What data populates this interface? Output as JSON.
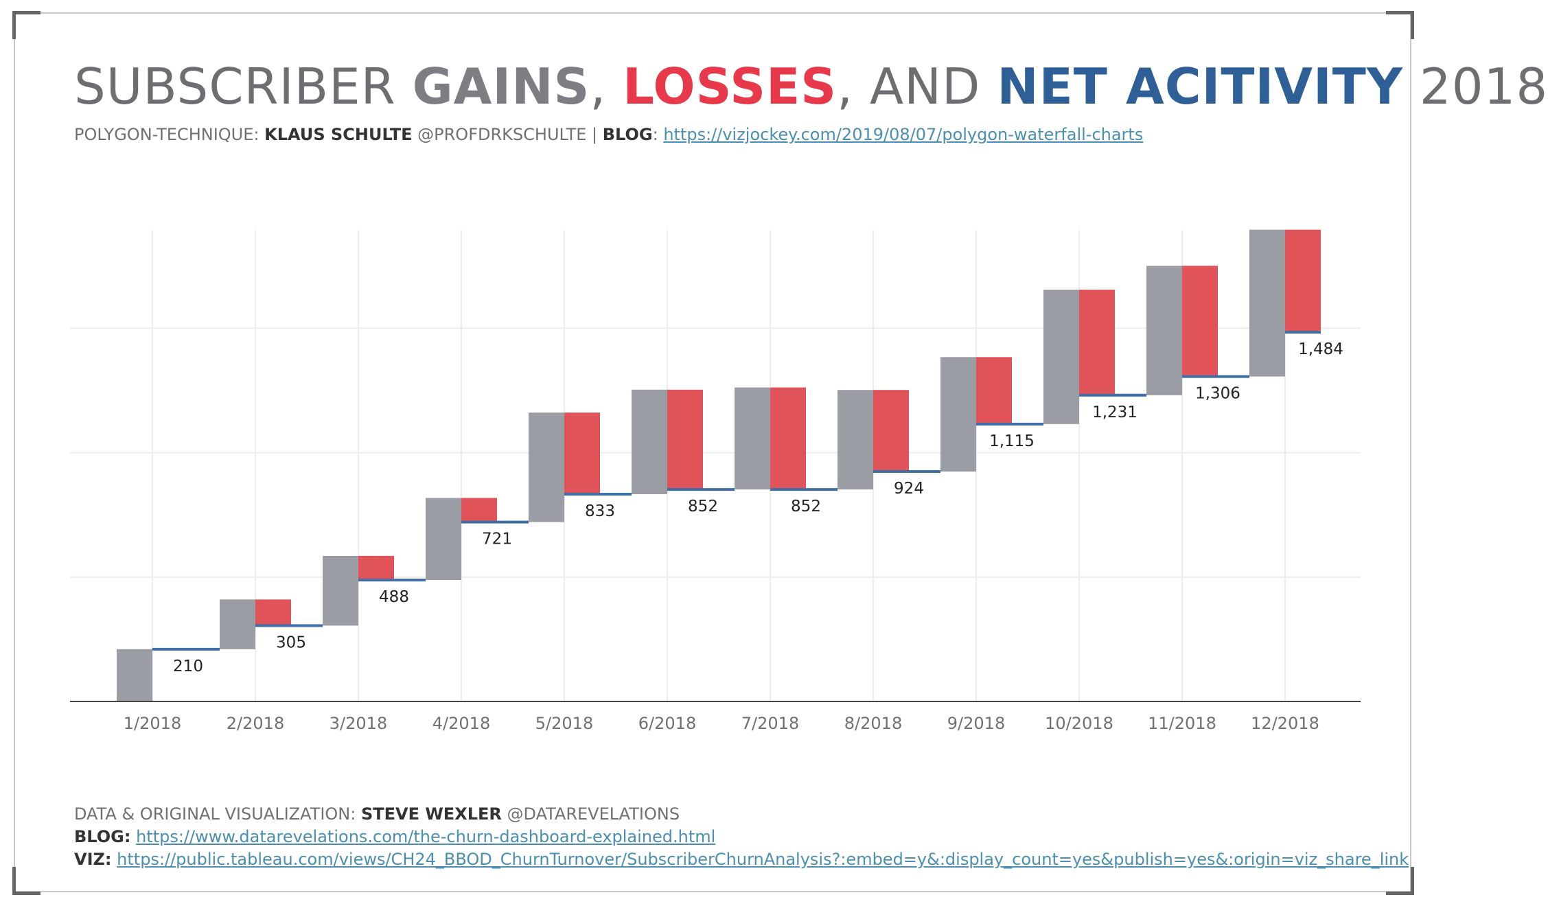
{
  "title": {
    "part1": "SUBSCRIBER ",
    "gains": "GAINS",
    "sep1": ", ",
    "losses": "LOSSES",
    "sep2": ", AND ",
    "net": "NET ACITIVITY",
    "year": " 2018"
  },
  "subtitle": {
    "prefix": "POLYGON-TECHNIQUE: ",
    "author": "KLAUS SCHULTE",
    "handle": " @PROFDRKSCHULTE | ",
    "blog_label": "BLOG",
    "colon": ": ",
    "blog_url": "https://vizjockey.com/2019/08/07/polygon-waterfall-charts"
  },
  "colors": {
    "gains": "#9a9da3",
    "losses": "#e05358",
    "net": "#3f6fa6",
    "grid": "#ececec",
    "axis": "#444444"
  },
  "chart_data": {
    "type": "bar",
    "subtype": "waterfall",
    "categories": [
      "1/2018",
      "2/2018",
      "3/2018",
      "4/2018",
      "5/2018",
      "6/2018",
      "7/2018",
      "8/2018",
      "9/2018",
      "10/2018",
      "11/2018",
      "12/2018"
    ],
    "series": [
      {
        "name": "GAINS",
        "values": [
          210,
          200,
          280,
          330,
          440,
          420,
          410,
          400,
          460,
          540,
          520,
          590
        ]
      },
      {
        "name": "LOSSES",
        "values": [
          0,
          105,
          97,
          47,
          328,
          401,
          410,
          328,
          344,
          424,
          445,
          412
        ]
      },
      {
        "name": "NET ACITIVITY",
        "values": [
          210,
          305,
          488,
          721,
          833,
          852,
          852,
          924,
          1115,
          1231,
          1306,
          1484
        ]
      }
    ],
    "labels": [
      "210",
      "305",
      "488",
      "721",
      "833",
      "852",
      "852",
      "924",
      "1,115",
      "1,231",
      "1,306",
      "1,484"
    ],
    "ylim": [
      0,
      1700
    ],
    "grid": true
  },
  "footer": {
    "data_prefix": "DATA & ORIGINAL VISUALIZATION: ",
    "data_author": "STEVE WEXLER",
    "data_handle": " @DATAREVELATIONS",
    "blog_label": "BLOG:",
    "blog_url": "https://www.datarevelations.com/the-churn-dashboard-explained.html",
    "viz_label": "VIZ:",
    "viz_url": "https://public.tableau.com/views/CH24_BBOD_ChurnTurnover/SubscriberChurnAnalysis?:embed=y&:display_count=yes&publish=yes&:origin=viz_share_link"
  }
}
